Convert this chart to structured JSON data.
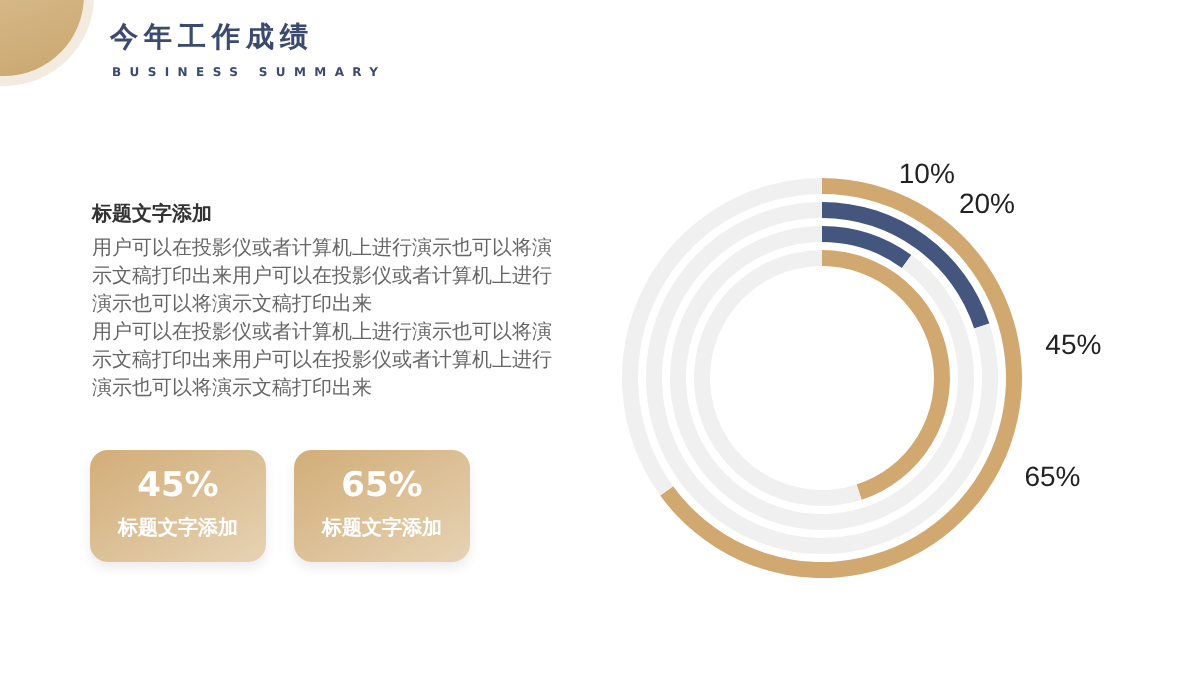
{
  "chart_data": {
    "type": "donut",
    "title": "今年工作成绩",
    "subtitle": "BUSINESS SUMMARY",
    "annotations": [
      "标题文字添加",
      "用户可以在投影仪或者计算机上进行演示也可以将演示文稿打印出来用户可以在投影仪或者计算机上进行演示也可以将演示文稿打印出来",
      "用户可以在投影仪或者计算机上进行演示也可以将演示文稿打印出来用户可以在投影仪或者计算机上进行演示也可以将演示文稿打印出来",
      "45%",
      "标题文字添加",
      "65%",
      "标题文字添加"
    ],
    "categories": [
      null,
      null
    ],
    "series": [
      {
        "values": [
          45,
          55
        ],
        "colors": [
          "#d1a870",
          "#f0f0f0"
        ],
        "value_labels": [
          "45%",
          null
        ]
      },
      {
        "values": [
          10,
          90
        ],
        "colors": [
          "#45567e",
          "#f0f0f0"
        ],
        "value_labels": [
          "10%",
          null
        ]
      },
      {
        "values": [
          20,
          80
        ],
        "colors": [
          "#45567e",
          "#f0f0f0"
        ],
        "value_labels": [
          "20%",
          null
        ]
      },
      {
        "values": [
          65,
          35
        ],
        "colors": [
          "#d1a870",
          "#f0f0f0"
        ],
        "value_labels": [
          "65%",
          null
        ]
      }
    ]
  }
}
